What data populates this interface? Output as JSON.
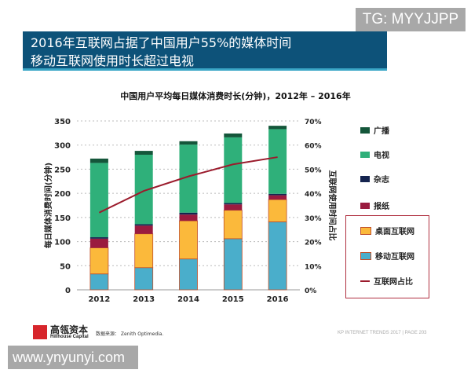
{
  "watermark_top": "TG: MYYJJPP",
  "watermark_bottom": "www.ynyunyi.com",
  "header": {
    "line1": "2016年互联网占据了中国用户55%的媒体时间",
    "line2": "移动互联网使用时长超过电视"
  },
  "footer": {
    "brand_cn": "高瓴资本",
    "brand_en": "Hillhouse Capital",
    "source": "数据来源： Zenith Optimedia.",
    "page": "KP INTERNET TRENDS 2017  |  PAGE 203"
  },
  "colors": {
    "header": "#0d5279",
    "mobile": "#4aaecb",
    "desktop": "#fbb93b",
    "newspaper": "#9a1b3f",
    "magazine": "#15244f",
    "tv": "#2fb07a",
    "radio": "#14563a",
    "line": "#9b1b2c"
  },
  "chart_data": {
    "type": "bar",
    "stacked": true,
    "title": "中国用户平均每日媒体消费时长(分钟)，2012年  –  2016年",
    "ylabel": "每日媒体消费时间(分钟)",
    "y2label": "互联网使用时间占比",
    "categories": [
      "2012",
      "2013",
      "2014",
      "2015",
      "2016"
    ],
    "ylim": [
      0,
      350
    ],
    "yticks": [
      "0",
      "50",
      "100",
      "150",
      "200",
      "250",
      "300",
      "350"
    ],
    "y2lim": [
      0,
      70
    ],
    "y2ticks": [
      "0%",
      "10%",
      "20%",
      "30%",
      "40%",
      "50%",
      "60%",
      "70%"
    ],
    "grid": true,
    "legend_position": "right",
    "series": [
      {
        "name": "移动互联网",
        "key": "mobile",
        "values": [
          33,
          46,
          64,
          106,
          141
        ]
      },
      {
        "name": "桌面互联网",
        "key": "desktop",
        "values": [
          54,
          70,
          79,
          59,
          46
        ]
      },
      {
        "name": "报纸",
        "key": "newspaper",
        "values": [
          19,
          17,
          13,
          12,
          9
        ]
      },
      {
        "name": "杂志",
        "key": "magazine",
        "values": [
          3,
          3,
          4,
          3,
          3
        ]
      },
      {
        "name": "电视",
        "key": "tv",
        "values": [
          154,
          144,
          141,
          136,
          134
        ]
      },
      {
        "name": "广播",
        "key": "radio",
        "values": [
          9,
          8,
          7,
          8,
          7
        ]
      }
    ],
    "line": {
      "name": "互联网占比",
      "key": "line",
      "axis": "y2",
      "values": [
        32,
        41,
        47,
        52,
        55
      ]
    }
  }
}
